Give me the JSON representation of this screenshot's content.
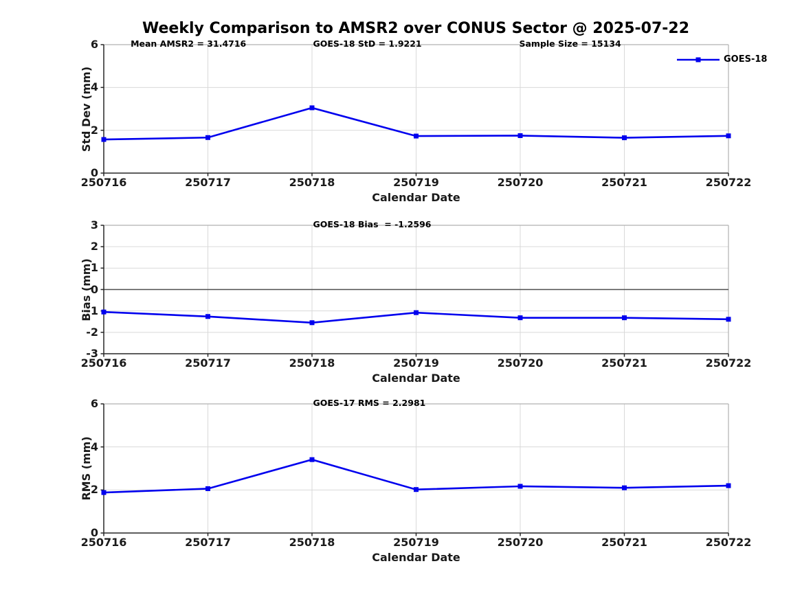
{
  "title": "Weekly Comparison to AMSR2 over CONUS Sector @ 2025-07-22",
  "colors": {
    "line": "#0000ee",
    "grid": "#d9d9d9",
    "spine_light": "#b0b0b0",
    "spine_dark": "#262626",
    "zero_line": "#4d4d4d",
    "text": "#000000",
    "background": "#ffffff"
  },
  "legend": {
    "label": "GOES-18",
    "position": "upper-right-outside"
  },
  "chart_data": [
    {
      "type": "line",
      "name": "std-dev",
      "ylabel": "Std Dev (mm)",
      "xlabel": "Calendar Date",
      "ylim": [
        0,
        6
      ],
      "yticks": [
        0,
        2,
        4,
        6
      ],
      "grid": true,
      "categories": [
        "250716",
        "250717",
        "250718",
        "250719",
        "250720",
        "250721",
        "250722"
      ],
      "annotations": [
        "Mean AMSR2 = 31.4716",
        "GOES-18 StD = 1.9221",
        "Sample Size = 15134"
      ],
      "series": [
        {
          "name": "GOES-18",
          "marker": "square",
          "values": [
            1.57,
            1.66,
            3.05,
            1.73,
            1.75,
            1.65,
            1.74
          ]
        }
      ]
    },
    {
      "type": "line",
      "name": "bias",
      "ylabel": "Bias (mm)",
      "xlabel": "Calendar Date",
      "ylim": [
        -3,
        3
      ],
      "yticks": [
        -3,
        -2,
        -1,
        0,
        1,
        2,
        3
      ],
      "grid": true,
      "zero_line": true,
      "categories": [
        "250716",
        "250717",
        "250718",
        "250719",
        "250720",
        "250721",
        "250722"
      ],
      "annotations": [
        "GOES-18 Bias  = -1.2596"
      ],
      "series": [
        {
          "name": "GOES-18",
          "marker": "square",
          "values": [
            -1.05,
            -1.26,
            -1.55,
            -1.08,
            -1.32,
            -1.32,
            -1.39
          ]
        }
      ]
    },
    {
      "type": "line",
      "name": "rms",
      "ylabel": "RMS (mm)",
      "xlabel": "Calendar Date",
      "ylim": [
        0,
        6
      ],
      "yticks": [
        0,
        2,
        4,
        6
      ],
      "grid": true,
      "categories": [
        "250716",
        "250717",
        "250718",
        "250719",
        "250720",
        "250721",
        "250722"
      ],
      "annotations": [
        "GOES-17 RMS = 2.2981"
      ],
      "series": [
        {
          "name": "GOES-18",
          "marker": "square",
          "values": [
            1.88,
            2.06,
            3.41,
            2.02,
            2.17,
            2.1,
            2.2
          ]
        }
      ]
    }
  ]
}
